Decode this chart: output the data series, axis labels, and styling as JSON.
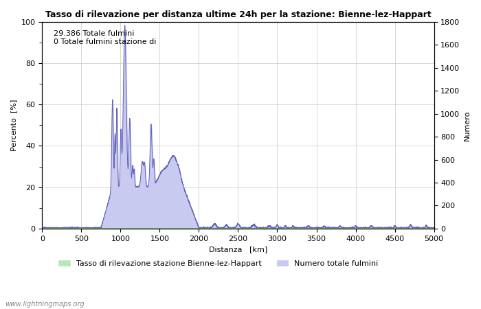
{
  "title": "Tasso di rilevazione per distanza ultime 24h per la stazione: Bienne-lez-Happart",
  "xlabel": "Distanza   [km]",
  "ylabel_left": "Percento  [%]",
  "ylabel_right": "Numero",
  "annotation": "29.386 Totale fulmini\n0 Totale fulmini stazione di",
  "xlim": [
    0,
    5000
  ],
  "ylim_left": [
    0,
    100
  ],
  "ylim_right": [
    0,
    1800
  ],
  "xticks": [
    0,
    500,
    1000,
    1500,
    2000,
    2500,
    3000,
    3500,
    4000,
    4500,
    5000
  ],
  "yticks_left": [
    0,
    20,
    40,
    60,
    80,
    100
  ],
  "yticks_right": [
    0,
    200,
    400,
    600,
    800,
    1000,
    1200,
    1400,
    1600,
    1800
  ],
  "watermark": "www.lightningmaps.org",
  "legend_label_green": "Tasso di rilevazione stazione Bienne-lez-Happart",
  "legend_label_blue": "Numero totale fulmini",
  "fill_color_blue": "#c8caf0",
  "line_color_blue": "#6060b8",
  "fill_color_green": "#b8e8b8",
  "line_color_green": "#60b060",
  "background_color": "#ffffff",
  "grid_color": "#c8c8c8"
}
